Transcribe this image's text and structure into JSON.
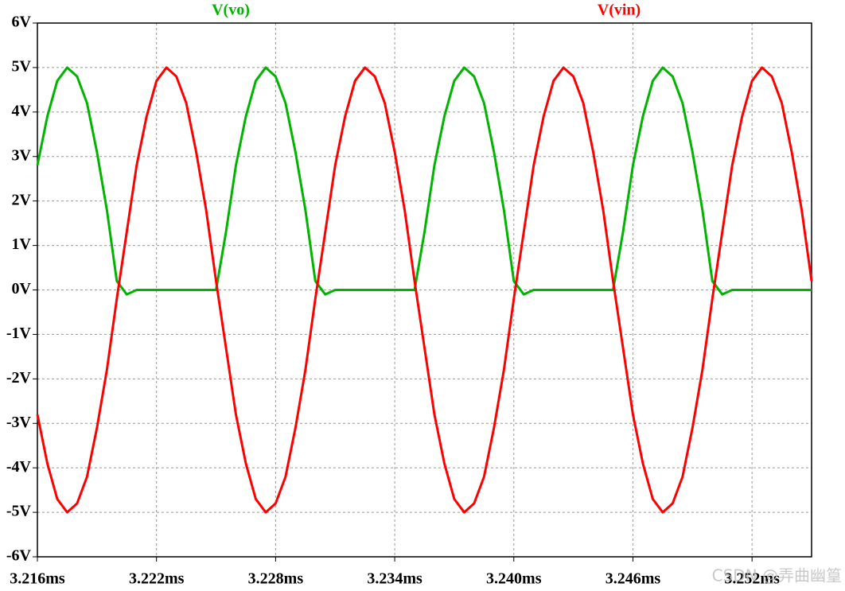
{
  "chart_data": {
    "type": "line",
    "x": [
      3.216,
      3.2165,
      3.217,
      3.2175,
      3.218,
      3.2185,
      3.219,
      3.2195,
      3.22,
      3.2205,
      3.221,
      3.2215,
      3.222,
      3.2225,
      3.223,
      3.2235,
      3.224,
      3.2245,
      3.225,
      3.2255,
      3.226,
      3.2265,
      3.227,
      3.2275,
      3.228,
      3.2285,
      3.229,
      3.2295,
      3.23,
      3.2305,
      3.231,
      3.2315,
      3.232,
      3.2325,
      3.233,
      3.2335,
      3.234,
      3.2345,
      3.235,
      3.2355,
      3.236,
      3.2365,
      3.237,
      3.2375,
      3.238,
      3.2385,
      3.239,
      3.2395,
      3.24,
      3.2405,
      3.241,
      3.2415,
      3.242,
      3.2425,
      3.243,
      3.2435,
      3.244,
      3.2445,
      3.245,
      3.2455,
      3.246,
      3.2465,
      3.247,
      3.2475,
      3.248,
      3.2485,
      3.249,
      3.2495,
      3.25,
      3.2505,
      3.251,
      3.2515,
      3.252,
      3.2525,
      3.253,
      3.2535,
      3.254,
      3.2545,
      3.255
    ],
    "series": [
      {
        "name": "V(vo)",
        "color": "#00b400",
        "values": [
          2.8,
          3.9,
          4.7,
          5,
          4.8,
          4.2,
          3.1,
          1.8,
          0.2,
          -0.1,
          0,
          0,
          0,
          0,
          0,
          0,
          0,
          0,
          0,
          1.3,
          2.8,
          3.9,
          4.7,
          5,
          4.8,
          4.2,
          3.1,
          1.8,
          0.2,
          -0.1,
          0,
          0,
          0,
          0,
          0,
          0,
          0,
          0,
          0,
          1.3,
          2.8,
          3.9,
          4.7,
          5,
          4.8,
          4.2,
          3.1,
          1.8,
          0.2,
          -0.1,
          0,
          0,
          0,
          0,
          0,
          0,
          0,
          0,
          0,
          1.3,
          2.8,
          3.9,
          4.7,
          5,
          4.8,
          4.2,
          3.1,
          1.8,
          0.2,
          -0.1,
          0,
          0,
          0,
          0,
          0,
          0,
          0,
          0,
          0
        ]
      },
      {
        "name": "V(vin)",
        "color": "#ff0000",
        "values": [
          -2.8,
          -3.9,
          -4.7,
          -5,
          -4.8,
          -4.2,
          -3.1,
          -1.8,
          -0.2,
          1.3,
          2.8,
          3.9,
          4.7,
          5,
          4.8,
          4.2,
          3.1,
          1.8,
          0.2,
          -1.3,
          -2.8,
          -3.9,
          -4.7,
          -5,
          -4.8,
          -4.2,
          -3.1,
          -1.8,
          -0.2,
          1.3,
          2.8,
          3.9,
          4.7,
          5,
          4.8,
          4.2,
          3.1,
          1.8,
          0.2,
          -1.3,
          -2.8,
          -3.9,
          -4.7,
          -5,
          -4.8,
          -4.2,
          -3.1,
          -1.8,
          -0.2,
          1.3,
          2.8,
          3.9,
          4.7,
          5,
          4.8,
          4.2,
          3.1,
          1.8,
          0.2,
          -1.3,
          -2.8,
          -3.9,
          -4.7,
          -5,
          -4.8,
          -4.2,
          -3.1,
          -1.8,
          -0.2,
          1.3,
          2.8,
          3.9,
          4.7,
          5,
          4.8,
          4.2,
          3.1,
          1.8,
          0.2
        ]
      }
    ],
    "xlim": [
      3.216,
      3.255
    ],
    "ylim": [
      -6,
      6
    ],
    "xticks": [
      {
        "value": 3.216,
        "label": "3.216ms"
      },
      {
        "value": 3.222,
        "label": "3.222ms"
      },
      {
        "value": 3.228,
        "label": "3.228ms"
      },
      {
        "value": 3.234,
        "label": "3.234ms"
      },
      {
        "value": 3.24,
        "label": "3.240ms"
      },
      {
        "value": 3.246,
        "label": "3.246ms"
      },
      {
        "value": 3.252,
        "label": "3.252ms"
      }
    ],
    "yticks": [
      {
        "value": 6,
        "label": "6V"
      },
      {
        "value": 5,
        "label": "5V"
      },
      {
        "value": 4,
        "label": "4V"
      },
      {
        "value": 3,
        "label": "3V"
      },
      {
        "value": 2,
        "label": "2V"
      },
      {
        "value": 1,
        "label": "1V"
      },
      {
        "value": 0,
        "label": "0V"
      },
      {
        "value": -1,
        "label": "-1V"
      },
      {
        "value": -2,
        "label": "-2V"
      },
      {
        "value": -3,
        "label": "-3V"
      },
      {
        "value": -4,
        "label": "-4V"
      },
      {
        "value": -5,
        "label": "-5V"
      },
      {
        "value": -6,
        "label": "-6V"
      }
    ],
    "grid": true,
    "watermark": "CSDN @弄曲幽篁"
  }
}
